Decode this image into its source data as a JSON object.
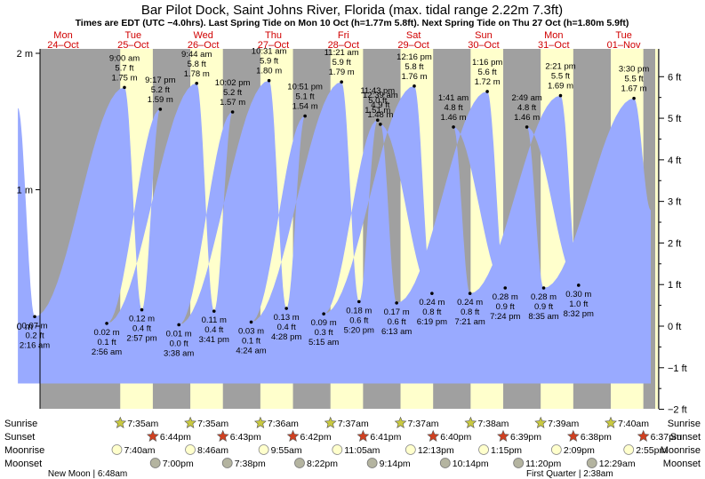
{
  "colors": {
    "night": "#a0a0a0",
    "day": "#ffffcc",
    "tide": "#99aaff",
    "day_label": "#d00000",
    "sunrise_star": "#c8c840",
    "sunset_star": "#d04020",
    "moonrise": "#ffffcc",
    "moonset": "#b4b4a0"
  },
  "chart_data": {
    "type": "area",
    "title": "Bar Pilot Dock, Saint Johns River, Florida (max. tidal range 2.22m 7.3ft)",
    "subtitle": "Times are EDT (UTC −4.0hrs). Last Spring Tide on Mon 10 Oct (h=1.77m 5.8ft). Next Spring Tide on Thu 27 Oct (h=1.80m 5.9ft)",
    "ylabel_left": "m",
    "ylabel_right": "ft",
    "ylim_m": [
      -0.58,
      2.03
    ],
    "x_range_days": [
      0.17,
      9.0
    ],
    "left_ticks": [
      {
        "value": 2,
        "label": "2 m"
      },
      {
        "value": 1,
        "label": "1 m"
      },
      {
        "value": 0,
        "label": "0 m"
      }
    ],
    "right_ticks": [
      {
        "value": 6,
        "label": "6 ft"
      },
      {
        "value": 5,
        "label": "5 ft"
      },
      {
        "value": 4,
        "label": "4 ft"
      },
      {
        "value": 3,
        "label": "3 ft"
      },
      {
        "value": 2,
        "label": "2 ft"
      },
      {
        "value": 1,
        "label": "1 ft"
      },
      {
        "value": 0,
        "label": "0 ft"
      },
      {
        "value": -1,
        "label": "−1 ft"
      },
      {
        "value": -2,
        "label": "−2 ft"
      }
    ],
    "days": [
      {
        "name": "Mon",
        "date": "24–Oct"
      },
      {
        "name": "Tue",
        "date": "25–Oct"
      },
      {
        "name": "Wed",
        "date": "26–Oct"
      },
      {
        "name": "Thu",
        "date": "27–Oct"
      },
      {
        "name": "Fri",
        "date": "28–Oct"
      },
      {
        "name": "Sat",
        "date": "29–Oct"
      },
      {
        "name": "Sun",
        "date": "30–Oct"
      },
      {
        "name": "Mon",
        "date": "31–Oct"
      },
      {
        "name": "Tue",
        "date": "01–Nov"
      }
    ],
    "start_level_m": 1.6,
    "extremes": [
      {
        "day": 0,
        "time": "2:16 am",
        "m": 0.07,
        "m_label": "0.07 m",
        "ft_label": "0.2 ft",
        "type": "low"
      },
      {
        "day": 1,
        "time": "9:00 am",
        "m": 1.75,
        "m_label": "1.75 m",
        "ft_label": "5.7 ft",
        "type": "high"
      },
      {
        "day": 1,
        "time": "2:57 pm",
        "m": 0.12,
        "m_label": "0.12 m",
        "ft_label": "0.4 ft",
        "type": "low"
      },
      {
        "day": 1,
        "time": "9:17 pm",
        "m": 1.59,
        "m_label": "1.59 m",
        "ft_label": "5.2 ft",
        "type": "high"
      },
      {
        "day": 1,
        "time": "2:56 am",
        "m": 0.02,
        "m_label": "0.02 m",
        "ft_label": "0.1 ft",
        "type": "low"
      },
      {
        "day": 2,
        "time": "9:44 am",
        "m": 1.78,
        "m_label": "1.78 m",
        "ft_label": "5.8 ft",
        "type": "high"
      },
      {
        "day": 2,
        "time": "3:41 pm",
        "m": 0.11,
        "m_label": "0.11 m",
        "ft_label": "0.4 ft",
        "type": "low"
      },
      {
        "day": 2,
        "time": "10:02 pm",
        "m": 1.57,
        "m_label": "1.57 m",
        "ft_label": "5.2 ft",
        "type": "high"
      },
      {
        "day": 2,
        "time": "3:38 am",
        "m": 0.01,
        "m_label": "0.01 m",
        "ft_label": "0.0 ft",
        "type": "low"
      },
      {
        "day": 3,
        "time": "10:31 am",
        "m": 1.8,
        "m_label": "1.80 m",
        "ft_label": "5.9 ft",
        "type": "high"
      },
      {
        "day": 3,
        "time": "4:28 pm",
        "m": 0.13,
        "m_label": "0.13 m",
        "ft_label": "0.4 ft",
        "type": "low"
      },
      {
        "day": 3,
        "time": "10:51 pm",
        "m": 1.54,
        "m_label": "1.54 m",
        "ft_label": "5.1 ft",
        "type": "high"
      },
      {
        "day": 3,
        "time": "4:24 am",
        "m": 0.03,
        "m_label": "0.03 m",
        "ft_label": "0.1 ft",
        "type": "low"
      },
      {
        "day": 4,
        "time": "11:21 am",
        "m": 1.79,
        "m_label": "1.79 m",
        "ft_label": "5.9 ft",
        "type": "high"
      },
      {
        "day": 4,
        "time": "5:20 pm",
        "m": 0.18,
        "m_label": "0.18 m",
        "ft_label": "0.6 ft",
        "type": "low"
      },
      {
        "day": 4,
        "time": "11:43 pm",
        "m": 1.51,
        "m_label": "1.51 m",
        "ft_label": "5.0 ft",
        "type": "high"
      },
      {
        "day": 4,
        "time": "5:15 am",
        "m": 0.09,
        "m_label": "0.09 m",
        "ft_label": "0.3 ft",
        "type": "low"
      },
      {
        "day": 5,
        "time": "12:16 pm",
        "m": 1.76,
        "m_label": "1.76 m",
        "ft_label": "5.8 ft",
        "type": "high"
      },
      {
        "day": 5,
        "time": "6:19 pm",
        "m": 0.24,
        "m_label": "0.24 m",
        "ft_label": "0.8 ft",
        "type": "low"
      },
      {
        "day": 5,
        "time": "12:39 am",
        "m": 1.48,
        "m_label": "1.48 m",
        "ft_label": "4.9 ft",
        "type": "high"
      },
      {
        "day": 5,
        "time": "6:13 am",
        "m": 0.17,
        "m_label": "0.17 m",
        "ft_label": "0.6 ft",
        "type": "low"
      },
      {
        "day": 6,
        "time": "1:16 pm",
        "m": 1.72,
        "m_label": "1.72 m",
        "ft_label": "5.6 ft",
        "type": "high"
      },
      {
        "day": 6,
        "time": "7:24 pm",
        "m": 0.28,
        "m_label": "0.28 m",
        "ft_label": "0.9 ft",
        "type": "low"
      },
      {
        "day": 6,
        "time": "1:41 am",
        "m": 1.46,
        "m_label": "1.46 m",
        "ft_label": "4.8 ft",
        "type": "high"
      },
      {
        "day": 6,
        "time": "7:21 am",
        "m": 0.24,
        "m_label": "0.24 m",
        "ft_label": "0.8 ft",
        "type": "low"
      },
      {
        "day": 7,
        "time": "2:21 pm",
        "m": 1.69,
        "m_label": "1.69 m",
        "ft_label": "5.5 ft",
        "type": "high"
      },
      {
        "day": 7,
        "time": "8:32 pm",
        "m": 0.3,
        "m_label": "0.30 m",
        "ft_label": "1.0 ft",
        "type": "low"
      },
      {
        "day": 7,
        "time": "2:49 am",
        "m": 1.46,
        "m_label": "1.46 m",
        "ft_label": "4.8 ft",
        "type": "high"
      },
      {
        "day": 7,
        "time": "8:35 am",
        "m": 0.28,
        "m_label": "0.28 m",
        "ft_label": "0.9 ft",
        "type": "low"
      },
      {
        "day": 8,
        "time": "3:30 pm",
        "m": 1.67,
        "m_label": "1.67 m",
        "ft_label": "5.5 ft",
        "type": "high"
      }
    ],
    "day_periods": [
      {
        "rise": 1.315,
        "set": 1.78
      },
      {
        "rise": 2.315,
        "set": 2.78
      },
      {
        "rise": 3.315,
        "set": 3.78
      },
      {
        "rise": 4.315,
        "set": 4.78
      },
      {
        "rise": 5.315,
        "set": 5.78
      },
      {
        "rise": 6.315,
        "set": 6.78
      },
      {
        "rise": 7.315,
        "set": 7.78
      },
      {
        "rise": 8.315,
        "set": 8.78
      }
    ],
    "sun_moon_labels": [
      "Sunrise",
      "Sunset",
      "Moonrise",
      "Moonset"
    ],
    "sunrise": [
      {
        "time": "7:35am",
        "day": 1.315
      },
      {
        "time": "7:35am",
        "day": 2.315
      },
      {
        "time": "7:36am",
        "day": 3.315
      },
      {
        "time": "7:37am",
        "day": 4.315
      },
      {
        "time": "7:37am",
        "day": 5.315
      },
      {
        "time": "7:38am",
        "day": 6.315
      },
      {
        "time": "7:39am",
        "day": 7.315
      },
      {
        "time": "7:40am",
        "day": 8.315
      }
    ],
    "sunset": [
      {
        "time": "6:44pm",
        "day": 1.78
      },
      {
        "time": "6:43pm",
        "day": 2.78
      },
      {
        "time": "6:42pm",
        "day": 3.78
      },
      {
        "time": "6:41pm",
        "day": 4.78
      },
      {
        "time": "6:40pm",
        "day": 5.78
      },
      {
        "time": "6:39pm",
        "day": 6.78
      },
      {
        "time": "6:38pm",
        "day": 7.78
      },
      {
        "time": "6:37pm",
        "day": 8.78
      }
    ],
    "moonrise": [
      {
        "time": "7:40am",
        "day": 1.318
      },
      {
        "time": "8:46am",
        "day": 2.365
      },
      {
        "time": "9:55am",
        "day": 3.413
      },
      {
        "time": "11:05am",
        "day": 4.462
      },
      {
        "time": "12:13pm",
        "day": 5.509
      },
      {
        "time": "1:15pm",
        "day": 6.552
      },
      {
        "time": "2:09pm",
        "day": 7.59
      },
      {
        "time": "2:55pm",
        "day": 8.622
      }
    ],
    "moonset": [
      {
        "time": "7:00pm",
        "day": 1.79
      },
      {
        "time": "7:38pm",
        "day": 2.818
      },
      {
        "time": "8:22pm",
        "day": 3.849
      },
      {
        "time": "9:14pm",
        "day": 4.885
      },
      {
        "time": "10:14pm",
        "day": 5.927
      },
      {
        "time": "11:20pm",
        "day": 6.972
      },
      {
        "time": "12:29am",
        "day": 8.02
      }
    ],
    "moon_phases": [
      {
        "label": "New Moon | 6:48am",
        "day": 0.283
      },
      {
        "label": "First Quarter | 2:38am",
        "day": 7.11
      }
    ]
  }
}
